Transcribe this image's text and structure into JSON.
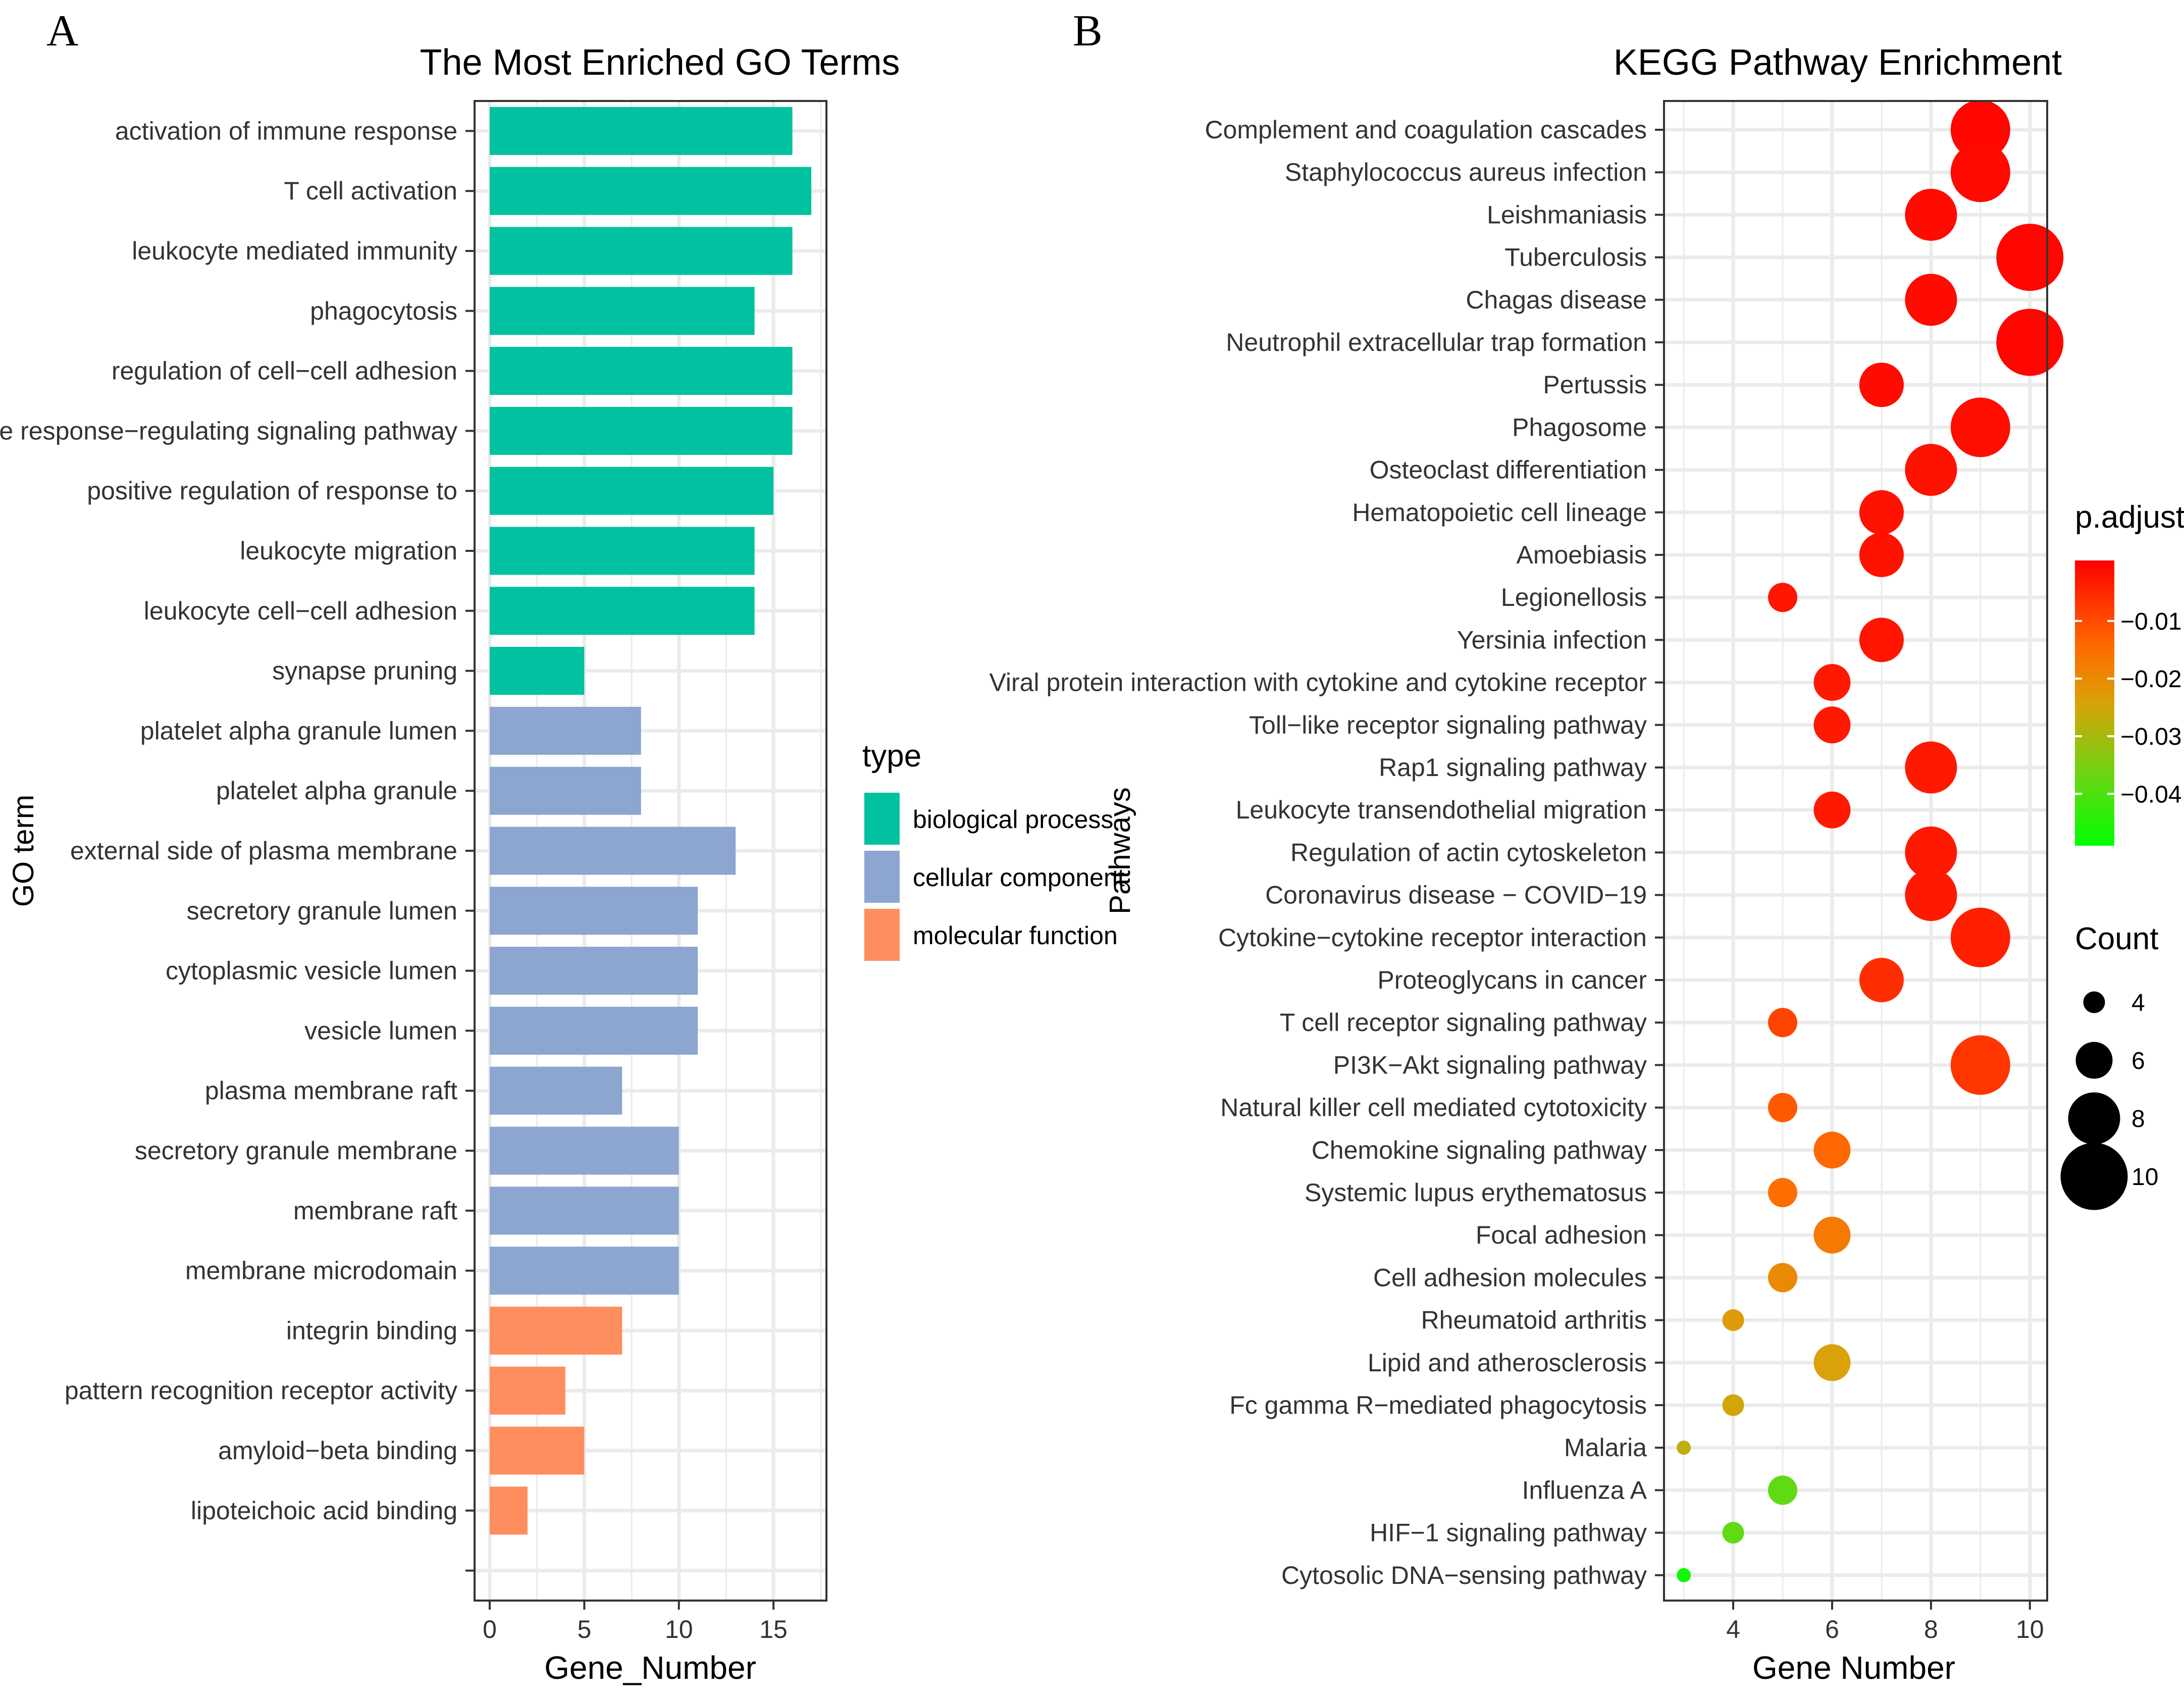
{
  "panels": {
    "a_label": "A",
    "b_label": "B"
  },
  "colors": {
    "biological_process": "#00C1A0",
    "cellular_component": "#8DA6D0",
    "molecular_function": "#FF8E5E",
    "grid": "#EBEBEB",
    "padj_high": "#FF0000",
    "padj_mid": "#D4A20E",
    "padj_low": "#00FF00"
  },
  "chart_data": [
    {
      "type": "bar",
      "orientation": "horizontal",
      "title": "The Most Enriched GO Terms",
      "xlabel": "Gene_Number",
      "ylabel": "GO term",
      "xlim": [
        -0.8,
        17.8
      ],
      "xticks": [
        0,
        5,
        10,
        15
      ],
      "legend": {
        "title": "type",
        "position": "right",
        "items": [
          {
            "key": "bp",
            "label": "biological process",
            "color": "#00C1A0"
          },
          {
            "key": "cc",
            "label": "cellular component",
            "color": "#8DA6D0"
          },
          {
            "key": "mf",
            "label": "molecular function",
            "color": "#FF8E5E"
          }
        ]
      },
      "categories": [
        "activation of immune response",
        "T cell activation",
        "leukocyte mediated immunity",
        "phagocytosis",
        "regulation of cell−cell adhesion",
        "immune response−regulating signaling pathway",
        "positive regulation of response to",
        "leukocyte migration",
        "leukocyte cell−cell adhesion",
        "synapse pruning",
        "platelet alpha granule lumen",
        "platelet alpha granule",
        "external side of plasma membrane",
        "secretory granule lumen",
        "cytoplasmic vesicle lumen",
        "vesicle lumen",
        "plasma membrane raft",
        "secretory granule membrane",
        "membrane raft",
        "membrane microdomain",
        "integrin binding",
        "pattern recognition receptor activity",
        "amyloid−beta binding",
        "lipoteichoic acid binding",
        ""
      ],
      "values": [
        16,
        17,
        16,
        14,
        16,
        16,
        15,
        14,
        14,
        5,
        8,
        8,
        13,
        11,
        11,
        11,
        7,
        10,
        10,
        10,
        7,
        4,
        5,
        2,
        0
      ],
      "types": [
        "bp",
        "bp",
        "bp",
        "bp",
        "bp",
        "bp",
        "bp",
        "bp",
        "bp",
        "bp",
        "cc",
        "cc",
        "cc",
        "cc",
        "cc",
        "cc",
        "cc",
        "cc",
        "cc",
        "cc",
        "mf",
        "mf",
        "mf",
        "mf",
        ""
      ]
    },
    {
      "type": "scatter",
      "title": "KEGG Pathway Enrichment",
      "xlabel": "Gene Number",
      "ylabel": "Pathways",
      "xlim": [
        2.6,
        10.35
      ],
      "xticks": [
        4,
        6,
        8,
        10
      ],
      "categories": [
        "Complement and coagulation cascades",
        "Staphylococcus aureus infection",
        "Leishmaniasis",
        "Tuberculosis",
        "Chagas disease",
        "Neutrophil extracellular trap formation",
        "Pertussis",
        "Phagosome",
        "Osteoclast differentiation",
        "Hematopoietic cell lineage",
        "Amoebiasis",
        "Legionellosis",
        "Yersinia infection",
        "Viral protein interaction with cytokine and cytokine receptor",
        "Toll−like receptor signaling pathway",
        "Rap1 signaling pathway",
        "Leukocyte transendothelial migration",
        "Regulation of actin cytoskeleton",
        "Coronavirus disease − COVID−19",
        "Cytokine−cytokine receptor interaction",
        "Proteoglycans in cancer",
        "T cell receptor signaling pathway",
        "PI3K−Akt signaling pathway",
        "Natural killer cell mediated cytotoxicity",
        "Chemokine signaling pathway",
        "Systemic lupus erythematosus",
        "Focal adhesion",
        "Cell adhesion molecules",
        "Rheumatoid arthritis",
        "Lipid and atherosclerosis",
        "Fc gamma R−mediated phagocytosis",
        "Malaria",
        "Influenza A",
        "HIF−1 signaling pathway",
        "Cytosolic DNA−sensing pathway"
      ],
      "count": [
        9,
        9,
        8,
        10,
        8,
        10,
        7,
        9,
        8,
        7,
        7,
        5,
        7,
        6,
        6,
        8,
        6,
        8,
        8,
        9,
        7,
        5,
        9,
        5,
        6,
        5,
        6,
        5,
        4,
        6,
        4,
        3,
        5,
        4,
        3
      ],
      "p_adjust": [
        -0.0005,
        -0.0007,
        -0.001,
        -0.0005,
        -0.001,
        -0.0005,
        -0.001,
        -0.0015,
        -0.002,
        -0.002,
        -0.002,
        -0.0025,
        -0.0025,
        -0.003,
        -0.003,
        -0.003,
        -0.003,
        -0.003,
        -0.003,
        -0.004,
        -0.006,
        -0.009,
        -0.007,
        -0.012,
        -0.014,
        -0.015,
        -0.017,
        -0.02,
        -0.023,
        -0.024,
        -0.025,
        -0.027,
        -0.038,
        -0.038,
        -0.047
      ],
      "color_legend": {
        "title": "p.adjust",
        "position": "right",
        "range": [
          -0.049,
          0.0005
        ],
        "ticks": [
          -0.01,
          -0.02,
          -0.03,
          -0.04
        ],
        "tick_labels": [
          "−0.01",
          "−0.02",
          "−0.03",
          "−0.04"
        ]
      },
      "size_legend": {
        "title": "Count",
        "position": "right",
        "values": [
          4,
          6,
          8,
          10
        ],
        "labels": [
          "4",
          "6",
          "8",
          "10"
        ]
      }
    }
  ]
}
